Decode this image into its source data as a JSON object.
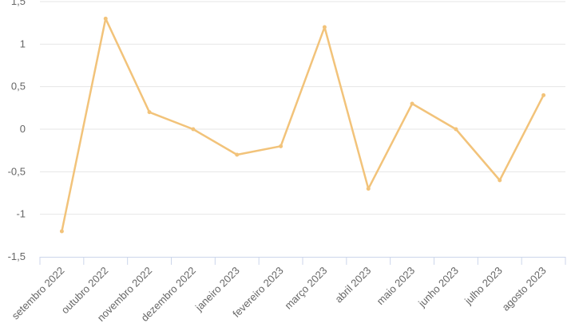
{
  "chart_data": {
    "type": "line",
    "categories": [
      "setembro 2022",
      "outubro 2022",
      "novembro 2022",
      "dezembro 2022",
      "janeiro 2023",
      "fevereiro 2023",
      "março 2023",
      "abril 2023",
      "maio 2023",
      "junho 2023",
      "julho 2023",
      "agosto 2023"
    ],
    "series": [
      {
        "values": [
          -1.2,
          1.3,
          0.2,
          0.0,
          -0.3,
          -0.2,
          1.2,
          -0.7,
          0.3,
          0.0,
          -0.6,
          0.4
        ],
        "color": "#f2c37a"
      }
    ],
    "ylim": [
      -1.5,
      1.5
    ],
    "yticks": [
      -1.5,
      -1,
      -0.5,
      0,
      0.5,
      1,
      1.5
    ],
    "ytick_labels": [
      "-1,5",
      "-1",
      "-0,5",
      "0",
      "0,5",
      "1",
      "1,5"
    ],
    "grid": true,
    "title": "",
    "xlabel": "",
    "ylabel": ""
  }
}
